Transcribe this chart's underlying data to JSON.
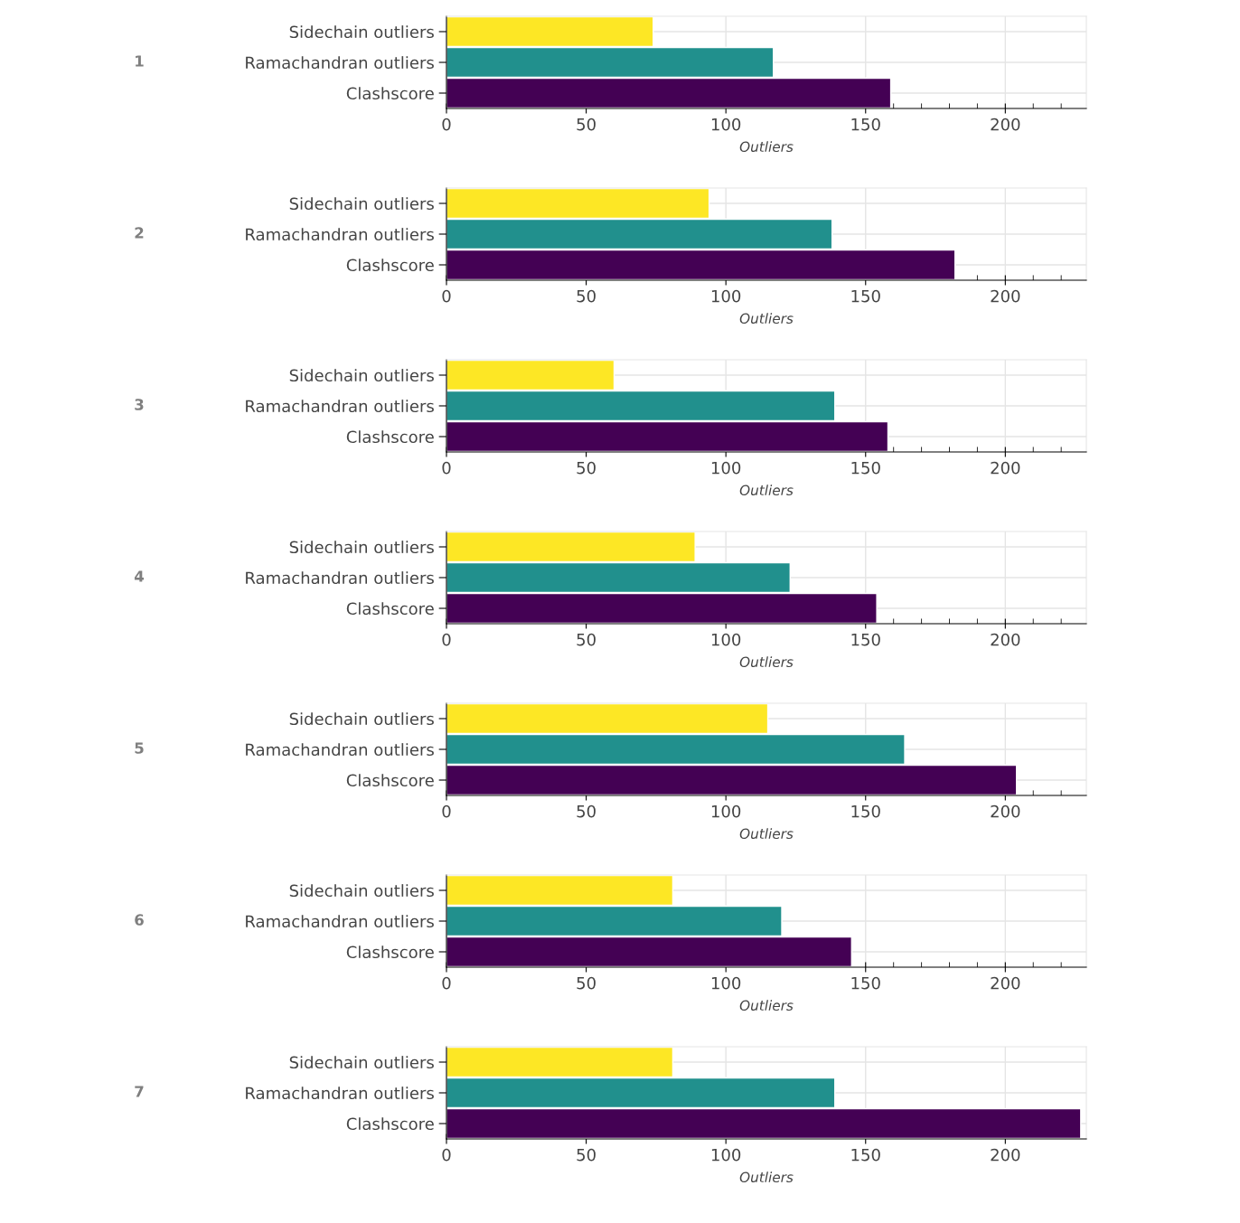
{
  "chart_data": [
    {
      "type": "bar",
      "orientation": "horizontal",
      "ylabel": "1",
      "xlabel": "Outliers",
      "categories": [
        "Sidechain outliers",
        "Ramachandran outliers",
        "Clashscore"
      ],
      "values": [
        74,
        117,
        159
      ],
      "colors": [
        "#fde725",
        "#21908d",
        "#440154"
      ],
      "xlim": [
        0,
        229
      ],
      "xticks": [
        0,
        50,
        100,
        150,
        200
      ],
      "grid": true
    },
    {
      "type": "bar",
      "orientation": "horizontal",
      "ylabel": "2",
      "xlabel": "Outliers",
      "categories": [
        "Sidechain outliers",
        "Ramachandran outliers",
        "Clashscore"
      ],
      "values": [
        94,
        138,
        182
      ],
      "colors": [
        "#fde725",
        "#21908d",
        "#440154"
      ],
      "xlim": [
        0,
        229
      ],
      "xticks": [
        0,
        50,
        100,
        150,
        200
      ],
      "grid": true
    },
    {
      "type": "bar",
      "orientation": "horizontal",
      "ylabel": "3",
      "xlabel": "Outliers",
      "categories": [
        "Sidechain outliers",
        "Ramachandran outliers",
        "Clashscore"
      ],
      "values": [
        60,
        139,
        158
      ],
      "colors": [
        "#fde725",
        "#21908d",
        "#440154"
      ],
      "xlim": [
        0,
        229
      ],
      "xticks": [
        0,
        50,
        100,
        150,
        200
      ],
      "grid": true
    },
    {
      "type": "bar",
      "orientation": "horizontal",
      "ylabel": "4",
      "xlabel": "Outliers",
      "categories": [
        "Sidechain outliers",
        "Ramachandran outliers",
        "Clashscore"
      ],
      "values": [
        89,
        123,
        154
      ],
      "colors": [
        "#fde725",
        "#21908d",
        "#440154"
      ],
      "xlim": [
        0,
        229
      ],
      "xticks": [
        0,
        50,
        100,
        150,
        200
      ],
      "grid": true
    },
    {
      "type": "bar",
      "orientation": "horizontal",
      "ylabel": "5",
      "xlabel": "Outliers",
      "categories": [
        "Sidechain outliers",
        "Ramachandran outliers",
        "Clashscore"
      ],
      "values": [
        115,
        164,
        204
      ],
      "colors": [
        "#fde725",
        "#21908d",
        "#440154"
      ],
      "xlim": [
        0,
        229
      ],
      "xticks": [
        0,
        50,
        100,
        150,
        200
      ],
      "grid": true
    },
    {
      "type": "bar",
      "orientation": "horizontal",
      "ylabel": "6",
      "xlabel": "Outliers",
      "categories": [
        "Sidechain outliers",
        "Ramachandran outliers",
        "Clashscore"
      ],
      "values": [
        81,
        120,
        145
      ],
      "colors": [
        "#fde725",
        "#21908d",
        "#440154"
      ],
      "xlim": [
        0,
        229
      ],
      "xticks": [
        0,
        50,
        100,
        150,
        200
      ],
      "grid": true
    },
    {
      "type": "bar",
      "orientation": "horizontal",
      "ylabel": "7",
      "xlabel": "Outliers",
      "categories": [
        "Sidechain outliers",
        "Ramachandran outliers",
        "Clashscore"
      ],
      "values": [
        81,
        139,
        227
      ],
      "colors": [
        "#fde725",
        "#21908d",
        "#440154"
      ],
      "xlim": [
        0,
        229
      ],
      "xticks": [
        0,
        50,
        100,
        150,
        200
      ],
      "grid": true
    }
  ]
}
